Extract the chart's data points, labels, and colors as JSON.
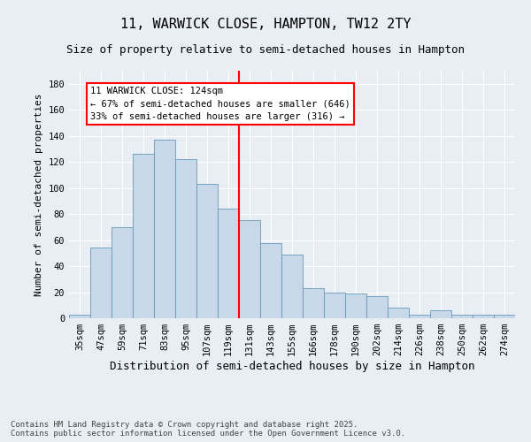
{
  "title1": "11, WARWICK CLOSE, HAMPTON, TW12 2TY",
  "title2": "Size of property relative to semi-detached houses in Hampton",
  "xlabel": "Distribution of semi-detached houses by size in Hampton",
  "ylabel": "Number of semi-detached properties",
  "categories": [
    "35sqm",
    "47sqm",
    "59sqm",
    "71sqm",
    "83sqm",
    "95sqm",
    "107sqm",
    "119sqm",
    "131sqm",
    "143sqm",
    "155sqm",
    "166sqm",
    "178sqm",
    "190sqm",
    "202sqm",
    "214sqm",
    "226sqm",
    "238sqm",
    "250sqm",
    "262sqm",
    "274sqm"
  ],
  "values": [
    3,
    54,
    70,
    126,
    137,
    122,
    103,
    84,
    75,
    58,
    49,
    23,
    20,
    19,
    17,
    8,
    3,
    6,
    3,
    3,
    3
  ],
  "bar_color": "#c8d8e8",
  "bar_edge_color": "#6699bb",
  "vline_x_index": 7.5,
  "vline_color": "red",
  "annotation_text": "11 WARWICK CLOSE: 124sqm\n← 67% of semi-detached houses are smaller (646)\n33% of semi-detached houses are larger (316) →",
  "annotation_box_color": "white",
  "annotation_box_edge_color": "red",
  "ylim": [
    0,
    190
  ],
  "yticks": [
    0,
    20,
    40,
    60,
    80,
    100,
    120,
    140,
    160,
    180
  ],
  "background_color": "#e8eef4",
  "footer_text": "Contains HM Land Registry data © Crown copyright and database right 2025.\nContains public sector information licensed under the Open Government Licence v3.0.",
  "title_fontsize": 11,
  "subtitle_fontsize": 9,
  "xlabel_fontsize": 9,
  "ylabel_fontsize": 8,
  "tick_fontsize": 7.5,
  "annotation_fontsize": 7.5,
  "footer_fontsize": 6.5
}
